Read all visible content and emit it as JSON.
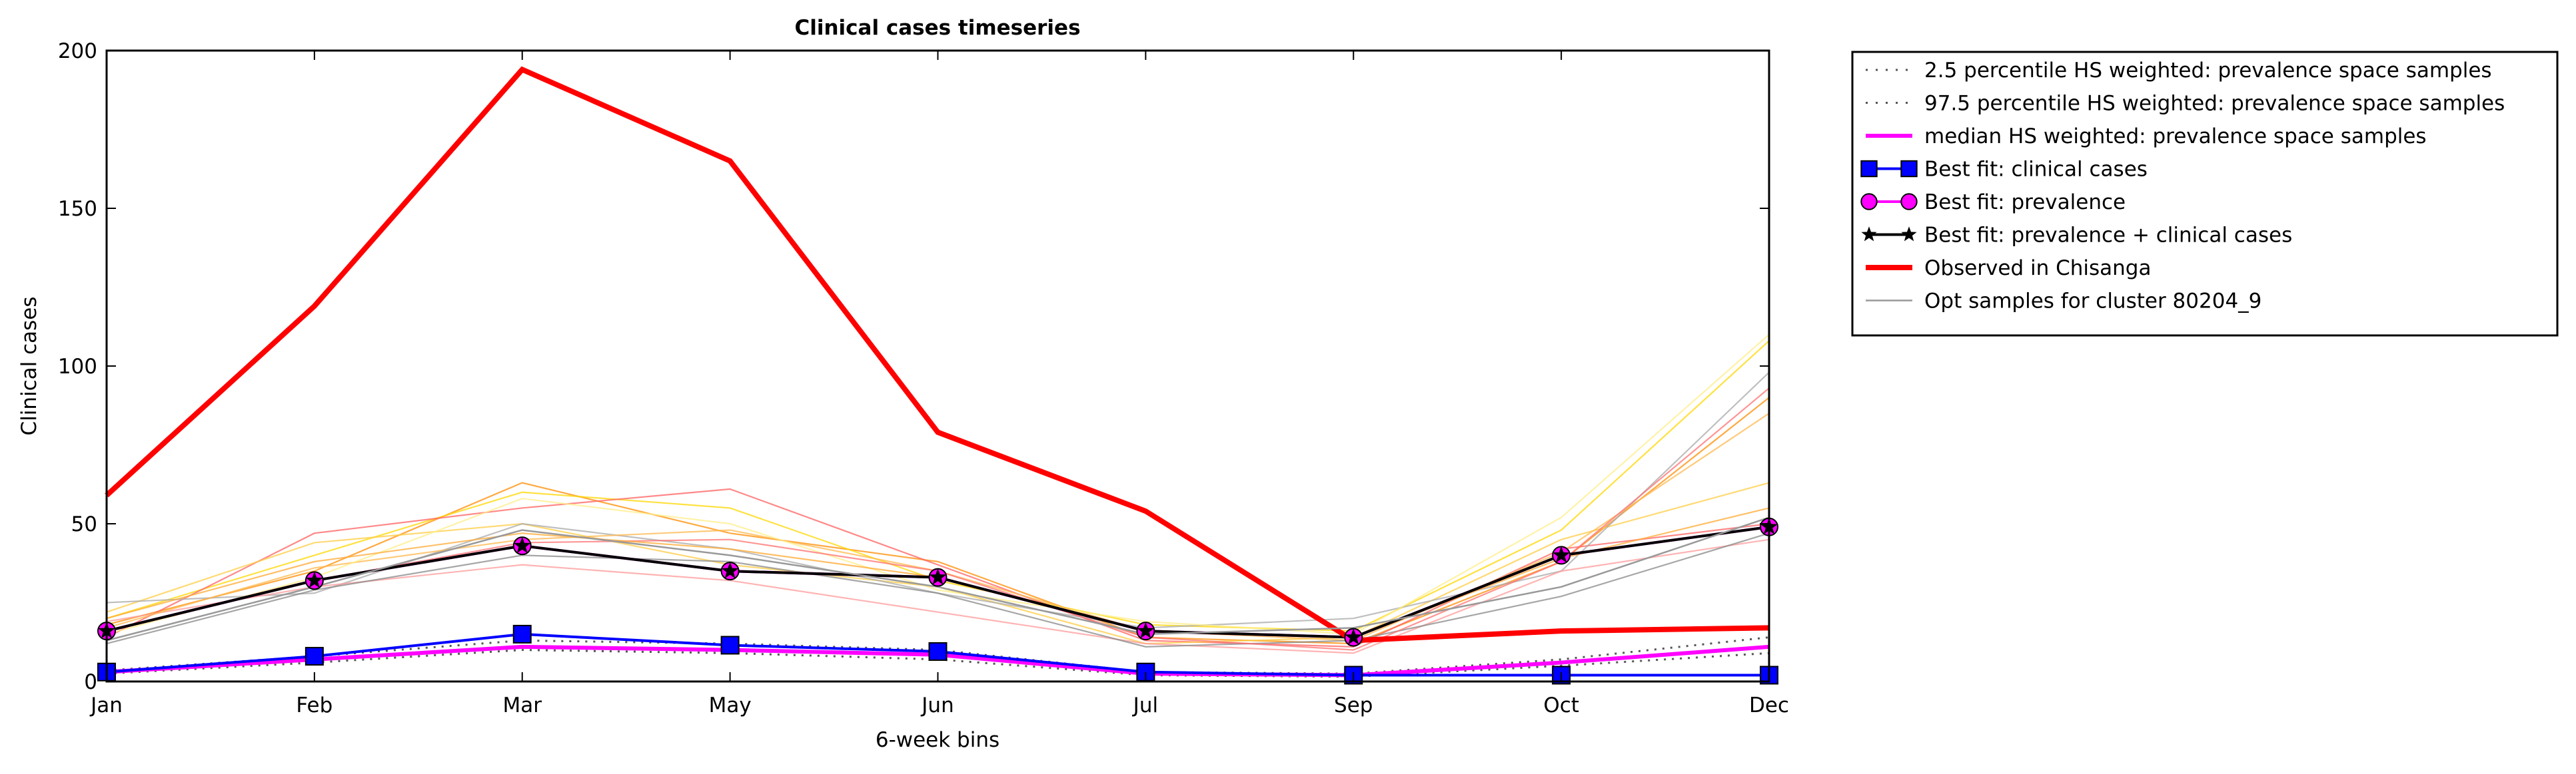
{
  "chart_data": {
    "type": "line",
    "title": "Clinical cases timeseries",
    "xlabel": "6-week bins",
    "ylabel": "Clinical cases",
    "categories": [
      "Jan",
      "Feb",
      "Mar",
      "May",
      "Jun",
      "Jul",
      "Sep",
      "Oct",
      "Dec"
    ],
    "ylim": [
      0,
      200
    ],
    "yticks": [
      "0",
      "50",
      "100",
      "150",
      "200"
    ],
    "grid": false,
    "legend_position": "outside-top-right",
    "series": [
      {
        "name": "2.5 percentile HS weighted: prevalence space samples",
        "style": "dotted",
        "color": "#555555",
        "values": [
          2.5,
          6.0,
          10.0,
          9.0,
          7.0,
          2.0,
          1.5,
          5.0,
          9.0
        ]
      },
      {
        "name": "97.5 percentile HS weighted: prevalence space samples",
        "style": "dotted",
        "color": "#555555",
        "values": [
          3.5,
          8.0,
          13.0,
          12.0,
          10.0,
          3.0,
          2.5,
          7.0,
          14.0
        ]
      },
      {
        "name": "median HS weighted: prevalence space samples",
        "style": "solid",
        "color": "#ff00ff",
        "values": [
          3.0,
          7.0,
          11.0,
          10.0,
          8.5,
          2.5,
          2.0,
          6.0,
          11.0
        ]
      },
      {
        "name": "Best fit: clinical cases",
        "style": "solid",
        "marker": "square",
        "color": "#0000ff",
        "values": [
          3.0,
          8.0,
          15.0,
          11.5,
          9.5,
          3.0,
          2.0,
          2.0,
          2.0
        ]
      },
      {
        "name": "Best fit: prevalence",
        "style": "solid",
        "marker": "circle",
        "color": "#ff00ff",
        "values": [
          16.0,
          32.0,
          43.0,
          35.0,
          33.0,
          16.0,
          14.0,
          40.0,
          49.0
        ]
      },
      {
        "name": "Best fit: prevalence + clinical cases",
        "style": "solid",
        "marker": "star",
        "color": "#000000",
        "values": [
          16.0,
          32.0,
          43.0,
          35.0,
          33.0,
          16.0,
          14.0,
          40.0,
          49.0
        ]
      },
      {
        "name": "Observed in Chisanga",
        "style": "solid",
        "color": "#ff0000",
        "values": [
          59.0,
          119.0,
          194.0,
          165.0,
          79.0,
          54.0,
          13.0,
          16.0,
          17.0
        ]
      },
      {
        "name": "Opt samples for cluster 80204_9",
        "style": "solid",
        "color": "#999999",
        "values": [
          13.0,
          30.0,
          48.0,
          40.0,
          30.0,
          15.0,
          17.0,
          30.0,
          52.0
        ]
      }
    ],
    "sample_lines": [
      {
        "color": "#ff8c00",
        "values": [
          18,
          35,
          63,
          47,
          38,
          14,
          12,
          38,
          90
        ]
      },
      {
        "color": "#ffd700",
        "values": [
          20,
          40,
          60,
          55,
          32,
          18,
          16,
          48,
          108
        ]
      },
      {
        "color": "#ff6060",
        "values": [
          14,
          47,
          55,
          61,
          37,
          13,
          11,
          42,
          50
        ]
      },
      {
        "color": "#ffcc44",
        "values": [
          22,
          44,
          50,
          37,
          30,
          12,
          14,
          45,
          63
        ]
      },
      {
        "color": "#aaaaaa",
        "values": [
          25,
          28,
          50,
          42,
          28,
          17,
          20,
          35,
          98
        ]
      },
      {
        "color": "#ff9999",
        "values": [
          19,
          30,
          37,
          32,
          22,
          12,
          9,
          35,
          45
        ]
      },
      {
        "color": "#ffb84d",
        "values": [
          17,
          36,
          45,
          48,
          35,
          16,
          13,
          41,
          85
        ]
      },
      {
        "color": "#ffee88",
        "values": [
          15,
          33,
          58,
          50,
          29,
          19,
          15,
          52,
          110
        ]
      },
      {
        "color": "#888888",
        "values": [
          12,
          29,
          40,
          38,
          28,
          11,
          13,
          27,
          47
        ]
      },
      {
        "color": "#ff7070",
        "values": [
          16,
          32,
          44,
          45,
          35,
          14,
          10,
          38,
          93
        ]
      },
      {
        "color": "#ffaa33",
        "values": [
          20,
          38,
          47,
          42,
          33,
          16,
          14,
          39,
          55
        ]
      }
    ]
  }
}
